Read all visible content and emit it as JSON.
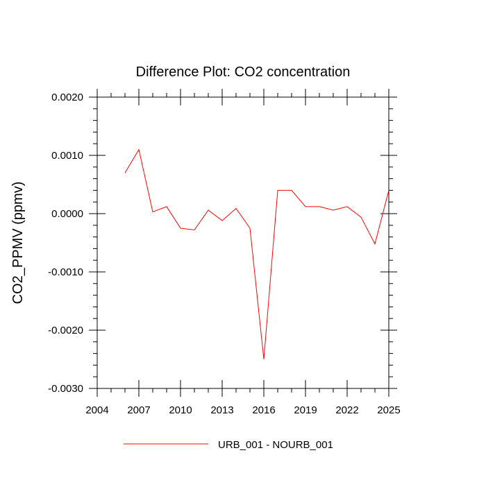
{
  "chart_data": {
    "type": "line",
    "title": "Difference Plot: CO2 concentration",
    "xlabel": "",
    "ylabel": "CO2_PPMV  (ppmv)",
    "xlim": [
      2004,
      2025
    ],
    "ylim": [
      -0.003,
      0.002
    ],
    "xticks": [
      2004,
      2007,
      2010,
      2013,
      2016,
      2019,
      2022,
      2025
    ],
    "xtick_labels": [
      "2004",
      "2007",
      "2010",
      "2013",
      "2016",
      "2019",
      "2022",
      "2025"
    ],
    "yticks": [
      0.002,
      0.001,
      0.0,
      -0.001,
      -0.002,
      -0.003
    ],
    "ytick_labels": [
      "0.0020",
      "0.0010",
      "0.0000",
      "-0.0010",
      "-0.0020",
      "-0.0030"
    ],
    "grid": false,
    "legend_position": "bottom-center",
    "series": [
      {
        "name": "URB_001 - NOURB_001",
        "color": "#ff0000",
        "x": [
          2006,
          2007,
          2008,
          2009,
          2010,
          2011,
          2012,
          2013,
          2014,
          2015,
          2016,
          2017,
          2018,
          2019,
          2020,
          2021,
          2022,
          2023,
          2024,
          2025
        ],
        "y": [
          0.0007,
          0.0011,
          3e-05,
          0.00012,
          -0.00025,
          -0.00028,
          6e-05,
          -0.00012,
          9e-05,
          -0.00025,
          -0.0025,
          0.0004,
          0.0004,
          0.00012,
          0.00012,
          6e-05,
          0.00012,
          -6e-05,
          -0.00052,
          0.0004
        ]
      }
    ]
  }
}
